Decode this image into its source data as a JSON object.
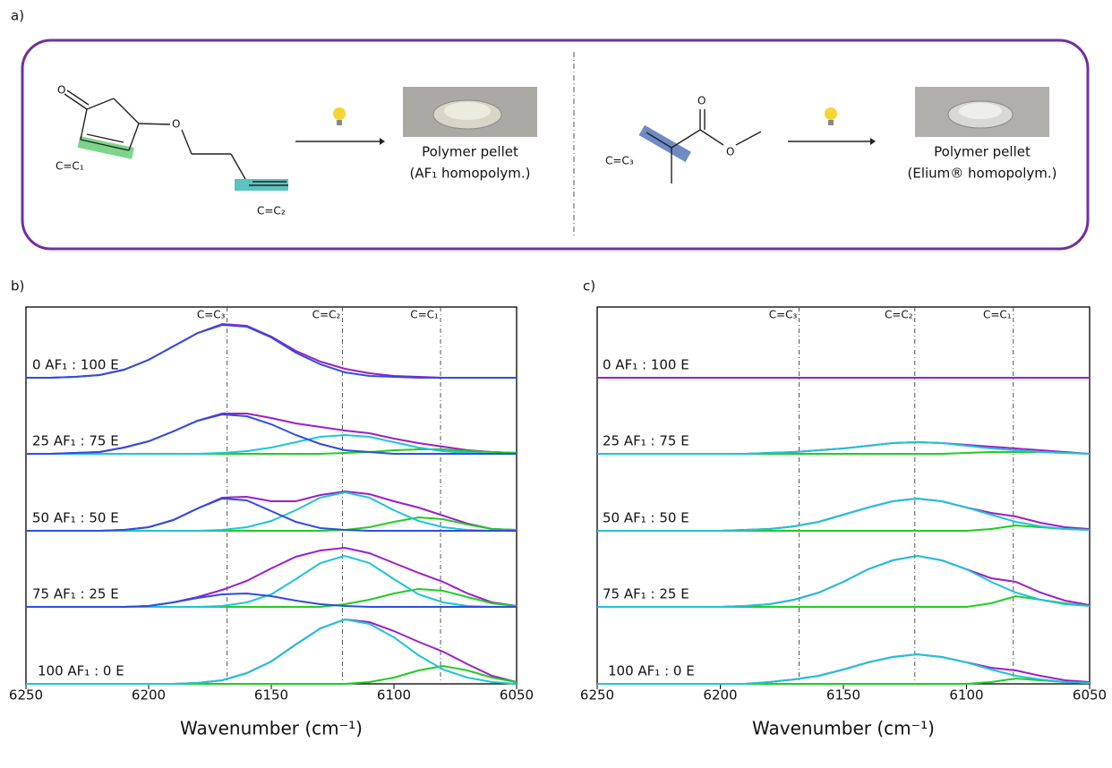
{
  "panel_a": {
    "label": "a)",
    "left": {
      "atoms": [
        "O",
        "O"
      ],
      "bond_labels": [
        "C=C₁",
        "C=C₂"
      ],
      "product": [
        "Polymer pellet",
        "(AF₁ homopolym.)"
      ]
    },
    "right": {
      "atoms": [
        "O",
        "O"
      ],
      "bond_labels": [
        "C=C₃"
      ],
      "product": [
        "Polymer pellet",
        "(Elium® homopolym.)"
      ]
    }
  },
  "chart_data": [
    {
      "type": "line",
      "panel_label": "b)",
      "xlabel": "Wavenumber (cm⁻¹)",
      "xlim": [
        6250,
        6050
      ],
      "xticks": [
        6250,
        6200,
        6150,
        6100,
        6050
      ],
      "reference_lines": [
        {
          "value": 6168,
          "label": "C=C₃"
        },
        {
          "value": 6121,
          "label": "C=C₂"
        },
        {
          "value": 6081,
          "label": "C=C₁"
        }
      ],
      "x": [
        6250,
        6240,
        6230,
        6220,
        6210,
        6200,
        6190,
        6180,
        6170,
        6160,
        6150,
        6140,
        6130,
        6120,
        6110,
        6100,
        6090,
        6080,
        6070,
        6060,
        6050
      ],
      "rows": [
        {
          "label": "0 AF₁ : 100 E",
          "series": [
            {
              "color": "#9b1fc9",
              "values": [
                0,
                0,
                1,
                3,
                9,
                20,
                35,
                50,
                60,
                58,
                46,
                30,
                18,
                10,
                5,
                2,
                1,
                0,
                0,
                0,
                0
              ]
            },
            {
              "color": "#2e4de0",
              "values": [
                0,
                0,
                1,
                3,
                9,
                20,
                35,
                50,
                59,
                57,
                45,
                28,
                15,
                6,
                2,
                1,
                0,
                0,
                0,
                0,
                0
              ]
            }
          ]
        },
        {
          "label": "25 AF₁ : 75 E",
          "series": [
            {
              "color": "#9b1fc9",
              "values": [
                0,
                0,
                1,
                2,
                7,
                14,
                25,
                37,
                45,
                45,
                40,
                34,
                30,
                26,
                23,
                17,
                12,
                8,
                4,
                2,
                1
              ]
            },
            {
              "color": "#22cc22",
              "values": [
                0,
                0,
                0,
                0,
                0,
                0,
                0,
                0,
                0,
                0,
                0,
                0,
                0,
                1,
                2,
                4,
                5,
                5,
                3,
                2,
                1
              ]
            },
            {
              "color": "#1fc4d6",
              "values": [
                0,
                0,
                0,
                0,
                0,
                0,
                0,
                0,
                1,
                3,
                7,
                13,
                19,
                21,
                19,
                13,
                7,
                3,
                1,
                0,
                0
              ]
            },
            {
              "color": "#2e4de0",
              "values": [
                0,
                0,
                1,
                2,
                7,
                14,
                25,
                37,
                44,
                42,
                33,
                21,
                11,
                4,
                2,
                0,
                0,
                0,
                0,
                0,
                0
              ]
            }
          ]
        },
        {
          "label": "50 AF₁ : 50 E",
          "series": [
            {
              "color": "#9b1fc9",
              "values": [
                0,
                0,
                0,
                0,
                1,
                4,
                12,
                25,
                37,
                38,
                33,
                33,
                40,
                44,
                41,
                33,
                26,
                17,
                8,
                2,
                1
              ]
            },
            {
              "color": "#22cc22",
              "values": [
                0,
                0,
                0,
                0,
                0,
                0,
                0,
                0,
                0,
                0,
                0,
                0,
                0,
                1,
                4,
                10,
                15,
                13,
                7,
                2,
                1
              ]
            },
            {
              "color": "#1fc4d6",
              "values": [
                0,
                0,
                0,
                0,
                0,
                0,
                0,
                0,
                1,
                4,
                11,
                23,
                37,
                43,
                37,
                23,
                11,
                4,
                1,
                0,
                0
              ]
            },
            {
              "color": "#2e4de0",
              "values": [
                0,
                0,
                0,
                0,
                1,
                4,
                12,
                25,
                36,
                34,
                22,
                10,
                3,
                1,
                0,
                0,
                0,
                0,
                0,
                0,
                0
              ]
            }
          ]
        },
        {
          "label": "75 AF₁ : 25 E",
          "series": [
            {
              "color": "#9b1fc9",
              "values": [
                0,
                0,
                0,
                0,
                0,
                1,
                5,
                11,
                19,
                29,
                43,
                56,
                63,
                66,
                60,
                49,
                38,
                28,
                15,
                5,
                1
              ]
            },
            {
              "color": "#22cc22",
              "values": [
                0,
                0,
                0,
                0,
                0,
                0,
                0,
                0,
                0,
                0,
                0,
                0,
                0,
                3,
                8,
                15,
                20,
                18,
                11,
                4,
                1
              ]
            },
            {
              "color": "#1fc4d6",
              "values": [
                0,
                0,
                0,
                0,
                0,
                0,
                0,
                0,
                1,
                5,
                14,
                31,
                49,
                57,
                49,
                31,
                14,
                5,
                1,
                0,
                0
              ]
            },
            {
              "color": "#2e4de0",
              "values": [
                0,
                0,
                0,
                0,
                0,
                1,
                5,
                10,
                14,
                15,
                12,
                7,
                3,
                1,
                0,
                0,
                0,
                0,
                0,
                0,
                0
              ]
            }
          ]
        },
        {
          "label": "100 AF₁ : 0 E",
          "series": [
            {
              "color": "#9b1fc9",
              "values": [
                0,
                0,
                0,
                0,
                0,
                0,
                0,
                1,
                4,
                12,
                25,
                44,
                62,
                72,
                69,
                59,
                47,
                36,
                22,
                9,
                2
              ]
            },
            {
              "color": "#22cc22",
              "values": [
                0,
                0,
                0,
                0,
                0,
                0,
                0,
                0,
                0,
                0,
                0,
                0,
                0,
                0,
                2,
                7,
                15,
                20,
                15,
                7,
                2
              ]
            },
            {
              "color": "#1fc4d6",
              "values": [
                0,
                0,
                0,
                0,
                0,
                0,
                0,
                1,
                4,
                12,
                25,
                44,
                62,
                72,
                67,
                52,
                32,
                16,
                7,
                2,
                0
              ]
            }
          ]
        }
      ]
    },
    {
      "type": "line",
      "panel_label": "c)",
      "xlabel": "Wavenumber (cm⁻¹)",
      "xlim": [
        6250,
        6050
      ],
      "xticks": [
        6250,
        6200,
        6150,
        6100,
        6050
      ],
      "reference_lines": [
        {
          "value": 6168,
          "label": "C=C₃"
        },
        {
          "value": 6121,
          "label": "C=C₂"
        },
        {
          "value": 6081,
          "label": "C=C₁"
        }
      ],
      "x": [
        6250,
        6240,
        6230,
        6220,
        6210,
        6200,
        6190,
        6180,
        6170,
        6160,
        6150,
        6140,
        6130,
        6120,
        6110,
        6100,
        6090,
        6080,
        6070,
        6060,
        6050
      ],
      "rows": [
        {
          "label": "0 AF₁ : 100 E",
          "series": [
            {
              "color": "#9b1fc9",
              "values": [
                0,
                0,
                0,
                0,
                0,
                0,
                0,
                0,
                0,
                0,
                0,
                0,
                0,
                0,
                0,
                0,
                0,
                0,
                0,
                0,
                0
              ]
            }
          ]
        },
        {
          "label": "25 AF₁ : 75 E",
          "series": [
            {
              "color": "#9b1fc9",
              "values": [
                0,
                0,
                0,
                0,
                0,
                0,
                0,
                1,
                2,
                4,
                6,
                9,
                12,
                13,
                12,
                10,
                8,
                6,
                4,
                2,
                0
              ]
            },
            {
              "color": "#22cc22",
              "values": [
                0,
                0,
                0,
                0,
                0,
                0,
                0,
                0,
                0,
                0,
                0,
                0,
                0,
                0,
                0,
                1,
                2,
                2,
                2,
                1,
                0
              ]
            },
            {
              "color": "#1fc4d6",
              "values": [
                0,
                0,
                0,
                0,
                0,
                0,
                0,
                1,
                2,
                4,
                6,
                9,
                12,
                13,
                12,
                9,
                6,
                4,
                2,
                1,
                0
              ]
            }
          ]
        },
        {
          "label": "50 AF₁ : 50 E",
          "series": [
            {
              "color": "#9b1fc9",
              "values": [
                0,
                0,
                0,
                0,
                0,
                0,
                1,
                2,
                5,
                10,
                18,
                26,
                33,
                36,
                33,
                26,
                20,
                16,
                9,
                4,
                2
              ]
            },
            {
              "color": "#22cc22",
              "values": [
                0,
                0,
                0,
                0,
                0,
                0,
                0,
                0,
                0,
                0,
                0,
                0,
                0,
                0,
                0,
                0,
                2,
                6,
                4,
                2,
                1
              ]
            },
            {
              "color": "#1fc4d6",
              "values": [
                0,
                0,
                0,
                0,
                0,
                0,
                1,
                2,
                5,
                10,
                18,
                26,
                33,
                36,
                33,
                26,
                18,
                10,
                5,
                2,
                1
              ]
            }
          ]
        },
        {
          "label": "75 AF₁ : 25 E",
          "series": [
            {
              "color": "#9b1fc9",
              "values": [
                0,
                0,
                0,
                0,
                0,
                0,
                1,
                3,
                8,
                16,
                28,
                42,
                52,
                57,
                52,
                42,
                32,
                28,
                16,
                7,
                2
              ]
            },
            {
              "color": "#22cc22",
              "values": [
                0,
                0,
                0,
                0,
                0,
                0,
                0,
                0,
                0,
                0,
                0,
                0,
                0,
                0,
                0,
                0,
                4,
                12,
                8,
                4,
                1
              ]
            },
            {
              "color": "#1fc4d6",
              "values": [
                0,
                0,
                0,
                0,
                0,
                0,
                1,
                3,
                8,
                16,
                28,
                42,
                52,
                57,
                52,
                42,
                28,
                16,
                8,
                3,
                1
              ]
            }
          ]
        },
        {
          "label": "100 AF₁ : 0 E",
          "series": [
            {
              "color": "#9b1fc9",
              "values": [
                0,
                0,
                0,
                0,
                0,
                0,
                0,
                2,
                5,
                9,
                16,
                24,
                30,
                33,
                30,
                24,
                18,
                15,
                9,
                4,
                2
              ]
            },
            {
              "color": "#22cc22",
              "values": [
                0,
                0,
                0,
                0,
                0,
                0,
                0,
                0,
                0,
                0,
                0,
                0,
                0,
                0,
                0,
                0,
                2,
                6,
                4,
                2,
                1
              ]
            },
            {
              "color": "#1fc4d6",
              "values": [
                0,
                0,
                0,
                0,
                0,
                0,
                0,
                2,
                5,
                9,
                16,
                24,
                30,
                33,
                30,
                24,
                16,
                9,
                5,
                2,
                1
              ]
            }
          ]
        }
      ]
    }
  ]
}
